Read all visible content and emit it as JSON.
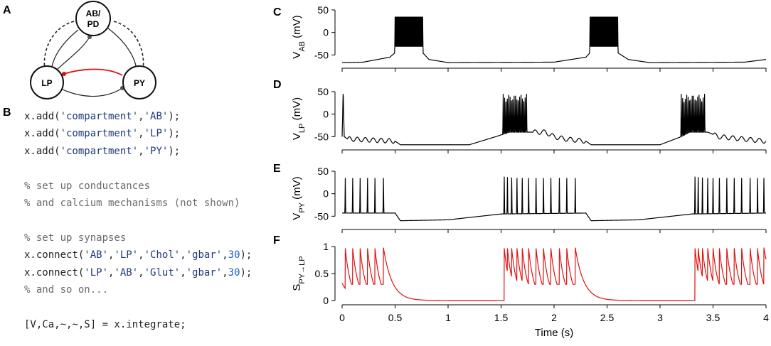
{
  "panels": {
    "a": "A",
    "b": "B",
    "c": "C",
    "d": "D",
    "e": "E",
    "f": "F"
  },
  "circuit": {
    "nodes": {
      "ab_line1": "AB/",
      "ab_line2": "PD",
      "lp": "LP",
      "py": "PY"
    },
    "colors": {
      "glut": "#e01010",
      "ink": "#222222",
      "bulb": "#555555"
    }
  },
  "code": {
    "lines": [
      {
        "type": "call",
        "fn": "x.add(",
        "args": [
          {
            "k": "str",
            "t": "'compartment'"
          },
          {
            "k": "plain",
            "t": ","
          },
          {
            "k": "str",
            "t": "'AB'"
          }
        ],
        "end": ");"
      },
      {
        "type": "call",
        "fn": "x.add(",
        "args": [
          {
            "k": "str",
            "t": "'compartment'"
          },
          {
            "k": "plain",
            "t": ","
          },
          {
            "k": "str",
            "t": "'LP'"
          }
        ],
        "end": ");"
      },
      {
        "type": "call",
        "fn": "x.add(",
        "args": [
          {
            "k": "str",
            "t": "'compartment'"
          },
          {
            "k": "plain",
            "t": ","
          },
          {
            "k": "str",
            "t": "'PY'"
          }
        ],
        "end": ");"
      },
      {
        "type": "blank"
      },
      {
        "type": "comment",
        "t": "% set up conductances"
      },
      {
        "type": "comment",
        "t": "% and calcium mechanisms (not shown)"
      },
      {
        "type": "blank"
      },
      {
        "type": "comment",
        "t": "% set up synapses"
      },
      {
        "type": "call",
        "fn": "x.connect(",
        "args": [
          {
            "k": "str",
            "t": "'AB'"
          },
          {
            "k": "plain",
            "t": ","
          },
          {
            "k": "str",
            "t": "'LP'"
          },
          {
            "k": "plain",
            "t": ","
          },
          {
            "k": "str",
            "t": "'Chol'"
          },
          {
            "k": "plain",
            "t": ","
          },
          {
            "k": "str",
            "t": "'gbar'"
          },
          {
            "k": "plain",
            "t": ","
          },
          {
            "k": "num",
            "t": "30"
          }
        ],
        "end": ");"
      },
      {
        "type": "call",
        "fn": "x.connect(",
        "args": [
          {
            "k": "str",
            "t": "'LP'"
          },
          {
            "k": "plain",
            "t": ","
          },
          {
            "k": "str",
            "t": "'AB'"
          },
          {
            "k": "plain",
            "t": ","
          },
          {
            "k": "str",
            "t": "'Glut'"
          },
          {
            "k": "plain",
            "t": ","
          },
          {
            "k": "str",
            "t": "'gbar'"
          },
          {
            "k": "plain",
            "t": ","
          },
          {
            "k": "num",
            "t": "30"
          }
        ],
        "end": ");"
      },
      {
        "type": "comment",
        "t": "% and so on..."
      },
      {
        "type": "blank"
      },
      {
        "type": "plain",
        "t": "[V,Ca,~,~,S] = x.integrate;"
      }
    ],
    "colors": {
      "string": "#1f3a78",
      "number": "#1a5fd0",
      "comment": "#6b6b6b"
    }
  },
  "chart_data": {
    "type": "line",
    "title": "",
    "x_ticks": [
      "0",
      "0.5",
      "1",
      "1.5",
      "2",
      "2.5",
      "3",
      "3.5",
      "4"
    ],
    "xlim": [
      0,
      4
    ],
    "xlabel": "Time (s)",
    "subplots": [
      {
        "id": "c",
        "ylabel_main": "V",
        "ylabel_sub": "AB",
        "ylabel_unit": " (mV)",
        "ylim": [
          -70,
          50
        ],
        "y_ticks": [
          50,
          0,
          -50
        ],
        "color": "#000000",
        "baseline": [
          [
            0,
            -67
          ],
          [
            0.2,
            -66
          ],
          [
            0.45,
            -55
          ],
          [
            0.5,
            -45
          ],
          [
            0.76,
            -45
          ],
          [
            0.82,
            -60
          ],
          [
            1.0,
            -67
          ],
          [
            2.0,
            -66
          ],
          [
            2.3,
            -55
          ],
          [
            2.34,
            -45
          ],
          [
            2.6,
            -45
          ],
          [
            2.7,
            -60
          ],
          [
            2.9,
            -67
          ],
          [
            3.8,
            -66
          ],
          [
            4.0,
            -60
          ]
        ],
        "burst_windows": [
          {
            "start": 0.5,
            "end": 0.76,
            "n": 40,
            "peak": 35
          },
          {
            "start": 2.34,
            "end": 2.6,
            "n": 40,
            "peak": 35
          }
        ]
      },
      {
        "id": "d",
        "ylabel_main": "V",
        "ylabel_sub": "LP",
        "ylabel_unit": " (mV)",
        "ylim": [
          -70,
          50
        ],
        "y_ticks": [
          50,
          0,
          -50
        ],
        "color": "#000000",
        "baseline": [
          [
            0,
            -50
          ],
          [
            0.01,
            45
          ],
          [
            0.02,
            -50
          ],
          [
            0.05,
            -55
          ],
          [
            0.5,
            -60
          ],
          [
            0.55,
            -68
          ],
          [
            1.2,
            -68
          ],
          [
            1.45,
            -50
          ],
          [
            1.58,
            -40
          ],
          [
            1.92,
            -40
          ],
          [
            2.0,
            -50
          ],
          [
            2.1,
            -55
          ],
          [
            2.3,
            -60
          ],
          [
            2.35,
            -68
          ],
          [
            3.0,
            -68
          ],
          [
            3.2,
            -50
          ],
          [
            3.28,
            -40
          ],
          [
            3.45,
            -40
          ],
          [
            3.55,
            -50
          ],
          [
            4.0,
            -60
          ]
        ],
        "burst_windows": [
          {
            "start": 1.52,
            "end": 1.74,
            "n": 18,
            "peak": 45
          },
          {
            "start": 3.2,
            "end": 3.42,
            "n": 18,
            "peak": 45
          }
        ],
        "sparse_spikes": [
          {
            "t": 0.01,
            "peak": 45
          }
        ],
        "osc_windows": [
          {
            "start": 0.05,
            "end": 0.5,
            "n": 6,
            "amp": 5
          },
          {
            "start": 1.8,
            "end": 2.3,
            "n": 6,
            "amp": 5
          },
          {
            "start": 3.5,
            "end": 4.0,
            "n": 6,
            "amp": 5
          }
        ]
      },
      {
        "id": "e",
        "ylabel_main": "V",
        "ylabel_sub": "PY",
        "ylabel_unit": " (mV)",
        "ylim": [
          -70,
          50
        ],
        "y_ticks": [
          50,
          0,
          -50
        ],
        "color": "#000000",
        "baseline": [
          [
            0,
            -43
          ],
          [
            0.5,
            -43
          ],
          [
            0.55,
            -60
          ],
          [
            1.0,
            -58
          ],
          [
            1.5,
            -45
          ],
          [
            2.3,
            -43
          ],
          [
            2.35,
            -60
          ],
          [
            2.8,
            -58
          ],
          [
            3.3,
            -45
          ],
          [
            4.0,
            -43
          ]
        ],
        "sparse_spikes": [
          {
            "t": 0.03,
            "peak": 35
          },
          {
            "t": 0.1,
            "peak": 35
          },
          {
            "t": 0.17,
            "peak": 35
          },
          {
            "t": 0.24,
            "peak": 35
          },
          {
            "t": 0.31,
            "peak": 35
          },
          {
            "t": 0.39,
            "peak": 35
          },
          {
            "t": 1.53,
            "peak": 38
          },
          {
            "t": 1.56,
            "peak": 37
          },
          {
            "t": 1.6,
            "peak": 36
          },
          {
            "t": 1.65,
            "peak": 35
          },
          {
            "t": 1.7,
            "peak": 35
          },
          {
            "t": 1.76,
            "peak": 35
          },
          {
            "t": 1.83,
            "peak": 35
          },
          {
            "t": 1.9,
            "peak": 35
          },
          {
            "t": 1.97,
            "peak": 35
          },
          {
            "t": 2.05,
            "peak": 35
          },
          {
            "t": 2.12,
            "peak": 35
          },
          {
            "t": 2.2,
            "peak": 35
          },
          {
            "t": 3.33,
            "peak": 38
          },
          {
            "t": 3.36,
            "peak": 37
          },
          {
            "t": 3.4,
            "peak": 36
          },
          {
            "t": 3.45,
            "peak": 35
          },
          {
            "t": 3.5,
            "peak": 35
          },
          {
            "t": 3.56,
            "peak": 35
          },
          {
            "t": 3.63,
            "peak": 35
          },
          {
            "t": 3.7,
            "peak": 35
          },
          {
            "t": 3.77,
            "peak": 35
          },
          {
            "t": 3.85,
            "peak": 35
          },
          {
            "t": 3.92,
            "peak": 35
          },
          {
            "t": 3.98,
            "peak": 35
          }
        ]
      },
      {
        "id": "f",
        "ylabel_main": "S",
        "ylabel_sub": "PY→LP",
        "ylabel_unit": "",
        "ylim": [
          0,
          1
        ],
        "y_ticks": [
          1,
          0.5,
          0
        ],
        "y_tick_labels": [
          "1",
          "0.5",
          "0"
        ],
        "color": "#e01010",
        "synapse_events": [
          0.03,
          0.1,
          0.17,
          0.24,
          0.31,
          0.39,
          1.53,
          1.56,
          1.6,
          1.65,
          1.7,
          1.76,
          1.83,
          1.9,
          1.97,
          2.05,
          2.12,
          2.2,
          3.33,
          3.36,
          3.4,
          3.45,
          3.5,
          3.56,
          3.63,
          3.7,
          3.77,
          3.85,
          3.92,
          3.98
        ],
        "tau": 0.05,
        "floor": 0.3
      }
    ]
  }
}
